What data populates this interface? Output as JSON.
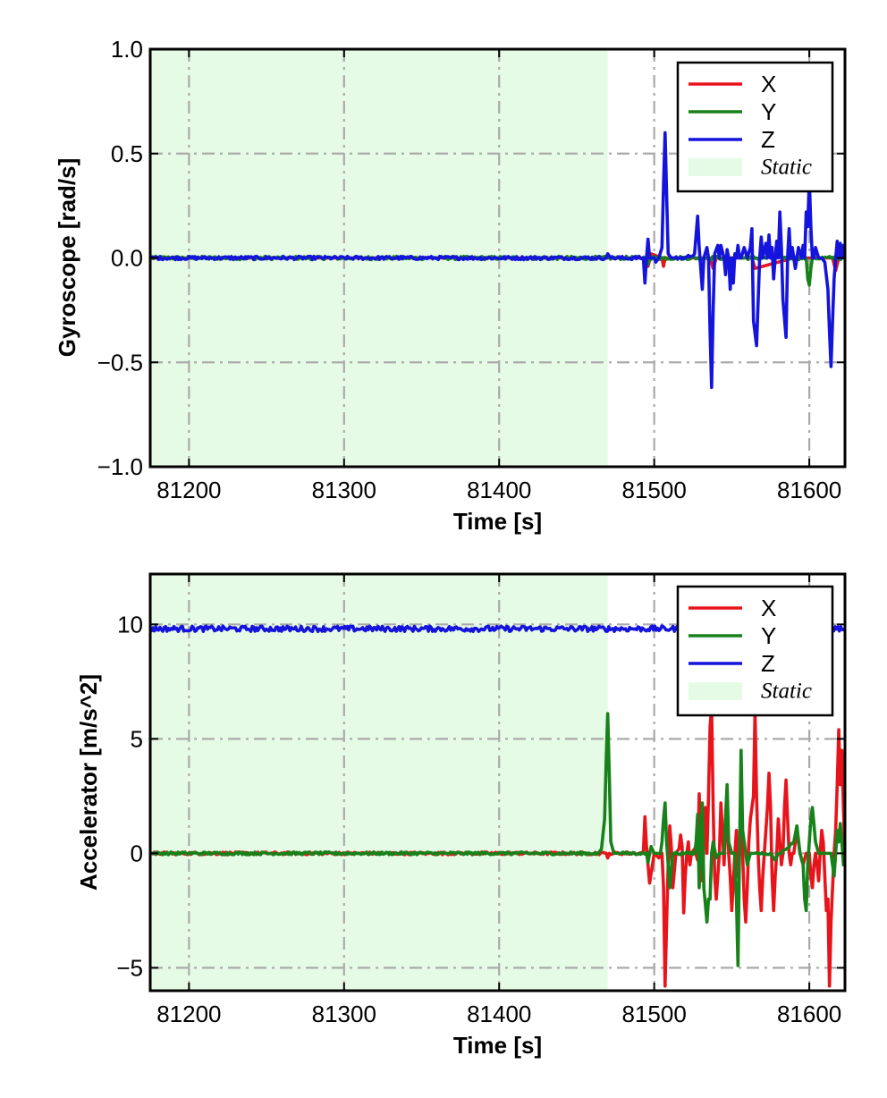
{
  "chart_data": [
    {
      "type": "line",
      "xlabel": "Time [s]",
      "ylabel": "Gyroscope [rad/s]",
      "xlim": [
        81175,
        81623
      ],
      "ylim": [
        -1.0,
        1.0
      ],
      "x_ticks": [
        81200,
        81300,
        81400,
        81500,
        81600
      ],
      "x_tick_labels": [
        "81200",
        "81300",
        "81400",
        "81500",
        "81600"
      ],
      "y_ticks": [
        1.0,
        0.5,
        0.0,
        -0.5,
        -1.0
      ],
      "y_tick_labels": [
        "1.0",
        "0.5",
        "0.0",
        "−0.5",
        "−1.0"
      ],
      "grid": true,
      "legend_position": "top-right",
      "static_region": {
        "label": "Static",
        "x_start": 81175,
        "x_end": 81470,
        "color": "#e6fbe6"
      },
      "series": [
        {
          "name": "X",
          "color": "#e8141b",
          "x": [
            81175,
            81470,
            81494,
            81496,
            81498,
            81505,
            81506,
            81507,
            81520,
            81536,
            81538,
            81540,
            81555,
            81563,
            81565,
            81590,
            81600,
            81615,
            81617,
            81619,
            81623
          ],
          "y": [
            0.0,
            0.0,
            0.0,
            -0.04,
            0.02,
            0.0,
            -0.04,
            0.0,
            0.0,
            0.0,
            -0.05,
            0.0,
            0.0,
            0.0,
            -0.05,
            0.0,
            0.0,
            0.0,
            -0.06,
            0.0,
            0.0
          ]
        },
        {
          "name": "Y",
          "color": "#17811a",
          "x": [
            81175,
            81470,
            81495,
            81496,
            81497,
            81553,
            81554,
            81555,
            81556,
            81598,
            81599,
            81600,
            81601,
            81602,
            81623
          ],
          "y": [
            0.0,
            0.0,
            0.0,
            -0.03,
            0.0,
            0.0,
            0.05,
            0.0,
            0.0,
            0.0,
            -0.1,
            -0.13,
            -0.05,
            0.0,
            0.0
          ]
        },
        {
          "name": "Z",
          "color": "#1414dc",
          "x": [
            81175,
            81469,
            81470,
            81471,
            81472,
            81493,
            81494,
            81495,
            81496,
            81497,
            81500,
            81501,
            81503,
            81505,
            81506,
            81507,
            81508,
            81509,
            81511,
            81513,
            81520,
            81526,
            81528,
            81529,
            81531,
            81532,
            81534,
            81535,
            81536,
            81537,
            81538,
            81539,
            81541,
            81542,
            81543,
            81545,
            81546,
            81547,
            81548,
            81549,
            81550,
            81551,
            81552,
            81553,
            81554,
            81555,
            81556,
            81558,
            81560,
            81562,
            81563,
            81564,
            81566,
            81568,
            81569,
            81570,
            81572,
            81573,
            81574,
            81575,
            81576,
            81577,
            81578,
            81579,
            81580,
            81581,
            81582,
            81583,
            81585,
            81586,
            81587,
            81588,
            81589,
            81590,
            81591,
            81592,
            81593,
            81595,
            81596,
            81597,
            81598,
            81599,
            81600,
            81601,
            81602,
            81603,
            81604,
            81606,
            81608,
            81610,
            81612,
            81613,
            81614,
            81615,
            81616,
            81617,
            81618,
            81619,
            81620,
            81621,
            81622,
            81623
          ],
          "y": [
            0.0,
            0.0,
            0.02,
            0.01,
            0.0,
            0.0,
            -0.12,
            0.0,
            0.09,
            0.0,
            0.0,
            -0.02,
            0.0,
            0.05,
            0.35,
            0.6,
            0.3,
            0.02,
            0.0,
            0.0,
            0.0,
            0.02,
            0.2,
            0.05,
            -0.15,
            0.0,
            0.05,
            0.0,
            -0.35,
            -0.62,
            -0.25,
            0.02,
            0.06,
            0.0,
            0.06,
            0.0,
            -0.08,
            0.04,
            0.0,
            -0.15,
            0.0,
            -0.12,
            0.02,
            0.0,
            0.06,
            0.0,
            0.0,
            0.05,
            0.0,
            0.05,
            0.14,
            -0.3,
            -0.42,
            0.0,
            0.1,
            0.0,
            0.07,
            0.0,
            0.11,
            0.0,
            0.05,
            -0.1,
            0.0,
            0.08,
            0.0,
            0.22,
            0.05,
            -0.2,
            -0.38,
            0.0,
            0.14,
            0.0,
            0.05,
            0.0,
            -0.05,
            0.0,
            0.05,
            0.0,
            0.06,
            0.0,
            0.22,
            0.15,
            0.38,
            0.15,
            0.0,
            0.0,
            0.05,
            0.0,
            0.0,
            -0.02,
            -0.15,
            -0.35,
            -0.52,
            -0.3,
            -0.1,
            0.0,
            0.08,
            0.0,
            0.07,
            0.0,
            0.06,
            0.0
          ]
        }
      ]
    },
    {
      "type": "line",
      "xlabel": "Time [s]",
      "ylabel": "Accelerator [m/s^2]",
      "xlim": [
        81175,
        81623
      ],
      "ylim": [
        -6.0,
        12.2
      ],
      "x_ticks": [
        81200,
        81300,
        81400,
        81500,
        81600
      ],
      "x_tick_labels": [
        "81200",
        "81300",
        "81400",
        "81500",
        "81600"
      ],
      "y_ticks": [
        10,
        5,
        0,
        -5
      ],
      "y_tick_labels": [
        "10",
        "5",
        "0",
        "−5"
      ],
      "grid": true,
      "legend_position": "top-right",
      "static_region": {
        "label": "Static",
        "x_start": 81175,
        "x_end": 81470,
        "color": "#e6fbe6"
      },
      "series": [
        {
          "name": "X",
          "color": "#e8141b",
          "x": [
            81175,
            81469,
            81470,
            81471,
            81490,
            81493,
            81494,
            81495,
            81497,
            81500,
            81503,
            81505,
            81506,
            81507,
            81508,
            81509,
            81510,
            81511,
            81512,
            81514,
            81516,
            81517,
            81518,
            81519,
            81520,
            81521,
            81522,
            81523,
            81524,
            81526,
            81528,
            81529,
            81530,
            81531,
            81532,
            81533,
            81534,
            81535,
            81536,
            81537,
            81538,
            81539,
            81540,
            81541,
            81542,
            81543,
            81544,
            81545,
            81546,
            81547,
            81548,
            81549,
            81550,
            81552,
            81553,
            81554,
            81555,
            81556,
            81557,
            81558,
            81559,
            81560,
            81561,
            81562,
            81563,
            81564,
            81565,
            81566,
            81567,
            81568,
            81569,
            81570,
            81571,
            81572,
            81573,
            81574,
            81575,
            81576,
            81577,
            81578,
            81579,
            81580,
            81581,
            81582,
            81583,
            81584,
            81585,
            81586,
            81587,
            81588,
            81589,
            81590,
            81592,
            81594,
            81596,
            81598,
            81600,
            81601,
            81602,
            81603,
            81604,
            81605,
            81606,
            81607,
            81608,
            81609,
            81610,
            81611,
            81612,
            81613,
            81614,
            81615,
            81616,
            81617,
            81618,
            81619,
            81620,
            81621,
            81622,
            81623
          ],
          "y": [
            0.0,
            0.0,
            -0.2,
            0.0,
            0.0,
            0.05,
            1.6,
            0.3,
            -1.3,
            0.0,
            -0.2,
            0.0,
            -1.5,
            -5.8,
            -3.0,
            -0.5,
            1.2,
            0.3,
            -1.5,
            0.0,
            0.2,
            0.8,
            0.3,
            -2.6,
            -1.0,
            0.0,
            0.5,
            -0.5,
            0.0,
            0.2,
            -0.3,
            2.6,
            0.0,
            -1.2,
            0.5,
            2.0,
            0.0,
            2.5,
            5.5,
            6.4,
            2.0,
            -1.0,
            -2.0,
            -1.0,
            0.0,
            2.2,
            1.0,
            -0.5,
            1.0,
            2.0,
            0.0,
            -1.0,
            -2.5,
            0.0,
            1.0,
            -1.0,
            0.0,
            1.2,
            0.0,
            -2.0,
            -3.0,
            -1.5,
            0.5,
            1.5,
            2.0,
            2.5,
            6.2,
            2.5,
            0.0,
            -1.5,
            -2.5,
            -1.0,
            0.0,
            1.0,
            2.0,
            3.5,
            2.0,
            -1.0,
            -2.5,
            -1.0,
            0.0,
            1.5,
            0.5,
            -0.5,
            0.0,
            2.0,
            3.2,
            1.5,
            0.0,
            -0.5,
            0.0,
            0.0,
            1.0,
            0.0,
            -0.5,
            0.0,
            0.0,
            -1.0,
            -1.5,
            -0.5,
            0.0,
            -0.5,
            -1.2,
            0.0,
            1.0,
            0.5,
            -1.0,
            -2.5,
            -2.0,
            -5.8,
            -3.0,
            -1.5,
            0.0,
            1.0,
            3.0,
            5.4,
            3.0,
            4.5,
            2.0,
            0.0
          ]
        },
        {
          "name": "Y",
          "color": "#17811a",
          "x": [
            81175,
            81464,
            81466,
            81468,
            81469,
            81470,
            81471,
            81472,
            81474,
            81478,
            81490,
            81495,
            81496,
            81497,
            81498,
            81500,
            81504,
            81505,
            81506,
            81507,
            81508,
            81509,
            81510,
            81512,
            81520,
            81526,
            81527,
            81528,
            81529,
            81530,
            81531,
            81532,
            81534,
            81535,
            81536,
            81537,
            81538,
            81540,
            81542,
            81545,
            81546,
            81547,
            81548,
            81550,
            81552,
            81553,
            81554,
            81555,
            81556,
            81557,
            81559,
            81560,
            81562,
            81565,
            81575,
            81578,
            81580,
            81582,
            81590,
            81592,
            81594,
            81596,
            81597,
            81598,
            81599,
            81600,
            81601,
            81602,
            81604,
            81606,
            81610,
            81614,
            81615,
            81616,
            81617,
            81618,
            81619,
            81620,
            81621,
            81622,
            81623
          ],
          "y": [
            0.0,
            0.0,
            0.2,
            1.5,
            4.0,
            6.1,
            3.5,
            0.5,
            0.0,
            0.0,
            0.0,
            0.0,
            -0.4,
            0.0,
            0.3,
            0.0,
            0.0,
            0.5,
            1.5,
            2.2,
            0.5,
            -0.5,
            -1.5,
            0.0,
            0.0,
            0.0,
            0.5,
            1.7,
            -1.5,
            0.3,
            2.2,
            -1.5,
            -3.0,
            -2.0,
            -2.0,
            0.0,
            0.5,
            -0.2,
            0.0,
            0.0,
            1.6,
            3.0,
            0.5,
            0.0,
            0.0,
            -2.0,
            -4.9,
            0.0,
            4.5,
            1.0,
            0.0,
            -0.5,
            0.0,
            0.0,
            0.0,
            -0.3,
            0.0,
            0.0,
            0.5,
            1.2,
            0.0,
            -0.5,
            -2.0,
            -2.5,
            -0.5,
            0.5,
            1.5,
            2.0,
            0.5,
            0.0,
            0.0,
            0.0,
            -0.5,
            -1.0,
            0.0,
            1.0,
            0.5,
            1.3,
            0.5,
            -0.5,
            0.0
          ]
        },
        {
          "name": "Z",
          "color": "#1414dc",
          "constant": 9.81,
          "x": [
            81175,
            81623
          ],
          "y": [
            9.81,
            9.81
          ]
        }
      ]
    }
  ]
}
